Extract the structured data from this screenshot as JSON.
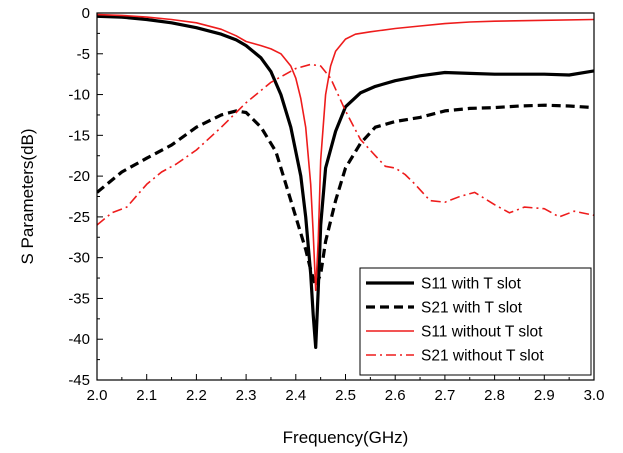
{
  "chart_data": {
    "type": "line",
    "title": "",
    "xlabel": "Frequency(GHz)",
    "ylabel": "S Parameters(dB)",
    "xlim": [
      2.0,
      3.0
    ],
    "ylim": [
      -45,
      0
    ],
    "xticks": [
      "2.0",
      "2.1",
      "2.2",
      "2.3",
      "2.4",
      "2.5",
      "2.6",
      "2.7",
      "2.8",
      "2.9",
      "3.0"
    ],
    "yticks": [
      "0",
      "-5",
      "-10",
      "-15",
      "-20",
      "-25",
      "-30",
      "-35",
      "-40",
      "-45"
    ],
    "grid": false,
    "legend_position": "bottom-right",
    "series": [
      {
        "name": "S11 with T slot",
        "color": "#000000",
        "line_style": "solid-thick",
        "x": [
          2.0,
          2.05,
          2.1,
          2.15,
          2.2,
          2.25,
          2.28,
          2.3,
          2.33,
          2.35,
          2.37,
          2.39,
          2.41,
          2.42,
          2.43,
          2.435,
          2.44,
          2.445,
          2.45,
          2.46,
          2.48,
          2.5,
          2.53,
          2.56,
          2.6,
          2.65,
          2.7,
          2.75,
          2.8,
          2.85,
          2.9,
          2.95,
          3.0
        ],
        "y": [
          -0.4,
          -0.5,
          -0.8,
          -1.2,
          -1.8,
          -2.6,
          -3.3,
          -4.0,
          -5.5,
          -7.2,
          -10.0,
          -14.0,
          -20.0,
          -25.0,
          -32.0,
          -37.0,
          -41.0,
          -34.0,
          -26.0,
          -19.0,
          -14.5,
          -11.5,
          -9.8,
          -9.0,
          -8.3,
          -7.7,
          -7.3,
          -7.4,
          -7.5,
          -7.5,
          -7.5,
          -7.6,
          -7.1
        ]
      },
      {
        "name": "S21 with T slot",
        "color": "#000000",
        "line_style": "dashed-thick",
        "x": [
          2.0,
          2.05,
          2.1,
          2.15,
          2.2,
          2.25,
          2.28,
          2.3,
          2.33,
          2.36,
          2.38,
          2.4,
          2.42,
          2.43,
          2.44,
          2.45,
          2.46,
          2.48,
          2.5,
          2.53,
          2.56,
          2.6,
          2.65,
          2.7,
          2.75,
          2.8,
          2.85,
          2.9,
          2.95,
          3.0
        ],
        "y": [
          -22.0,
          -19.5,
          -17.8,
          -16.2,
          -14.0,
          -12.5,
          -12.0,
          -12.2,
          -14.0,
          -17.0,
          -21.0,
          -25.0,
          -29.0,
          -31.5,
          -33.5,
          -32.0,
          -28.0,
          -23.0,
          -19.0,
          -16.0,
          -14.0,
          -13.3,
          -12.8,
          -12.0,
          -11.7,
          -11.6,
          -11.4,
          -11.3,
          -11.4,
          -11.6
        ]
      },
      {
        "name": "S11 without T slot",
        "color": "#ee1c1c",
        "line_style": "solid-thin",
        "x": [
          2.0,
          2.05,
          2.1,
          2.15,
          2.2,
          2.25,
          2.28,
          2.3,
          2.33,
          2.35,
          2.37,
          2.39,
          2.4,
          2.41,
          2.42,
          2.43,
          2.435,
          2.44,
          2.445,
          2.45,
          2.46,
          2.47,
          2.48,
          2.5,
          2.52,
          2.55,
          2.6,
          2.65,
          2.7,
          2.75,
          2.8,
          2.9,
          3.0
        ],
        "y": [
          -0.2,
          -0.3,
          -0.5,
          -0.8,
          -1.2,
          -2.0,
          -2.8,
          -3.5,
          -4.0,
          -4.4,
          -5.0,
          -6.5,
          -8.0,
          -10.5,
          -14.0,
          -21.0,
          -27.0,
          -34.0,
          -28.0,
          -18.0,
          -10.0,
          -6.5,
          -4.7,
          -3.2,
          -2.6,
          -2.3,
          -1.9,
          -1.6,
          -1.3,
          -1.1,
          -1.0,
          -0.9,
          -0.8
        ]
      },
      {
        "name": "S21 without T slot",
        "color": "#ee1c1c",
        "line_style": "dash-dot-thin",
        "x": [
          2.0,
          2.03,
          2.06,
          2.1,
          2.13,
          2.16,
          2.2,
          2.25,
          2.3,
          2.35,
          2.4,
          2.43,
          2.45,
          2.47,
          2.5,
          2.53,
          2.56,
          2.58,
          2.6,
          2.62,
          2.64,
          2.67,
          2.7,
          2.73,
          2.76,
          2.8,
          2.83,
          2.86,
          2.9,
          2.93,
          2.96,
          3.0
        ],
        "y": [
          -26.0,
          -24.5,
          -23.8,
          -21.0,
          -19.5,
          -18.5,
          -16.8,
          -14.0,
          -11.0,
          -8.5,
          -6.8,
          -6.3,
          -6.5,
          -8.0,
          -12.0,
          -15.5,
          -17.5,
          -18.8,
          -19.0,
          -19.8,
          -21.0,
          -23.0,
          -23.2,
          -22.5,
          -22.0,
          -23.5,
          -24.5,
          -23.8,
          -24.0,
          -25.0,
          -24.3,
          -24.8
        ]
      }
    ]
  }
}
